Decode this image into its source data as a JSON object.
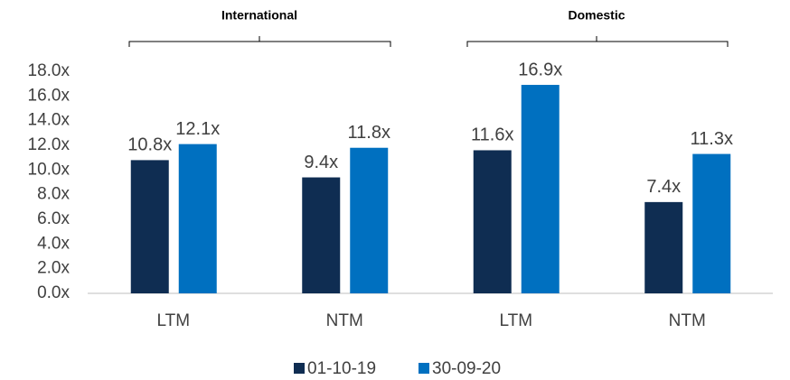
{
  "chart_data": {
    "type": "bar",
    "annotations": [
      "International",
      "Domestic"
    ],
    "categories": [
      "LTM",
      "NTM",
      "LTM",
      "NTM"
    ],
    "series": [
      {
        "name": "01-10-19",
        "color": "#0f2d52",
        "values": [
          10.8,
          9.4,
          11.6,
          7.4
        ],
        "value_labels": [
          "10.8x",
          "9.4x",
          "11.6x",
          "7.4x"
        ]
      },
      {
        "name": "30-09-20",
        "color": "#0070c0",
        "values": [
          12.1,
          11.8,
          16.9,
          11.3
        ],
        "value_labels": [
          "12.1x",
          "11.8x",
          "16.9x",
          "11.3x"
        ]
      }
    ],
    "ylim": [
      0,
      18
    ],
    "yticks": [
      {
        "value": 0,
        "label": "0.0x"
      },
      {
        "value": 2,
        "label": "2.0x"
      },
      {
        "value": 4,
        "label": "4.0x"
      },
      {
        "value": 6,
        "label": "6.0x"
      },
      {
        "value": 8,
        "label": "8.0x"
      },
      {
        "value": 10,
        "label": "10.0x"
      },
      {
        "value": 12,
        "label": "12.0x"
      },
      {
        "value": 14,
        "label": "14.0x"
      },
      {
        "value": 16,
        "label": "16.0x"
      },
      {
        "value": 18,
        "label": "18.0x"
      }
    ],
    "grid": false,
    "legend": "bottom"
  }
}
